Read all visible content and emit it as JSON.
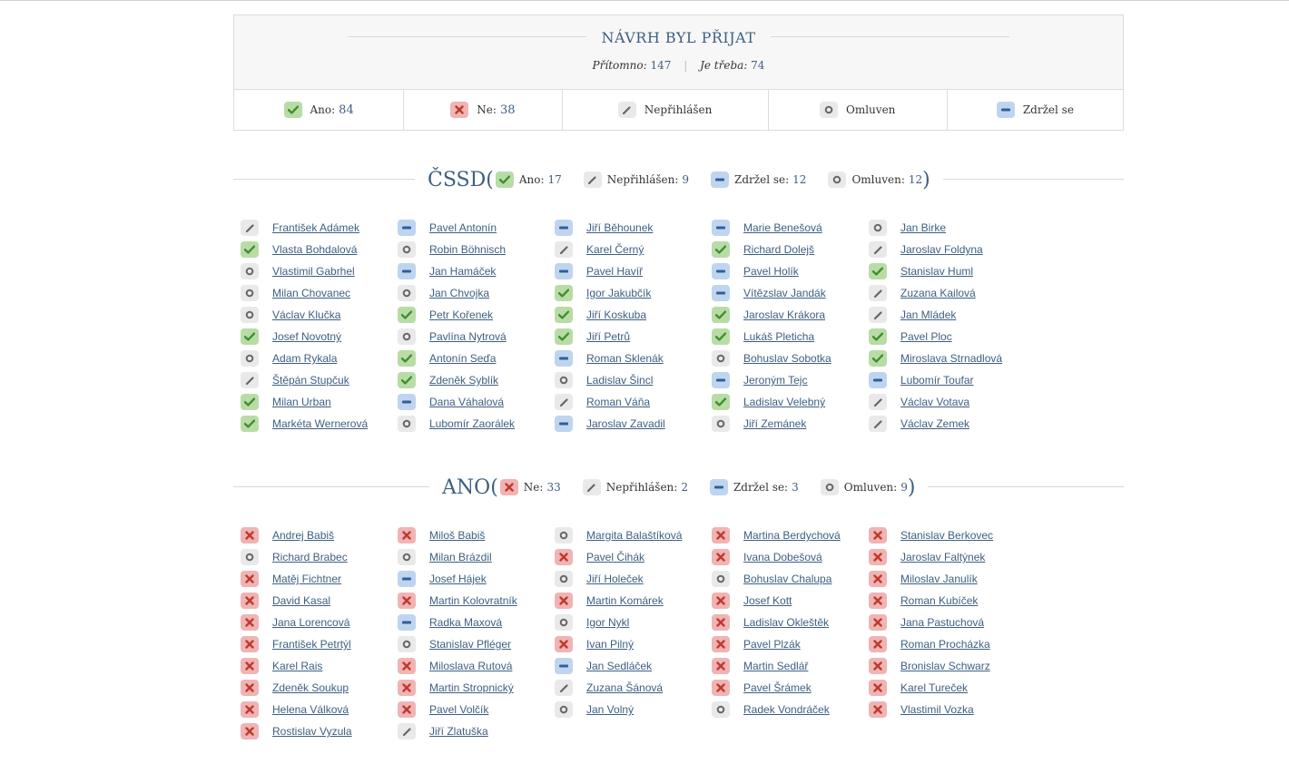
{
  "result": {
    "title": "NÁVRH BYL PŘIJAT",
    "present_label": "Přítomno:",
    "present_value": "147",
    "required_label": "Je třeba:",
    "required_value": "74",
    "legend": [
      {
        "type": "yes",
        "label": "Ano:",
        "value": "84"
      },
      {
        "type": "no",
        "label": "Ne:",
        "value": "38"
      },
      {
        "type": "abs",
        "label": "Nepřihlášen",
        "value": ""
      },
      {
        "type": "exc",
        "label": "Omluven",
        "value": ""
      },
      {
        "type": "abst",
        "label": "Zdržel se",
        "value": ""
      }
    ]
  },
  "parties": [
    {
      "name": "ČSSD",
      "summary": [
        {
          "type": "yes",
          "label": "Ano:",
          "value": "17"
        },
        {
          "type": "abs",
          "label": "Nepřihlášen:",
          "value": "9"
        },
        {
          "type": "abst",
          "label": "Zdržel se:",
          "value": "12"
        },
        {
          "type": "exc",
          "label": "Omluven:",
          "value": "12"
        }
      ],
      "members": [
        [
          {
            "n": "František Adámek",
            "v": "abs"
          },
          {
            "n": "Pavel Antonín",
            "v": "abst"
          },
          {
            "n": "Jiří Běhounek",
            "v": "abst"
          },
          {
            "n": "Marie Benešová",
            "v": "abst"
          },
          {
            "n": "Jan Birke",
            "v": "exc"
          }
        ],
        [
          {
            "n": "Vlasta Bohdalová",
            "v": "yes"
          },
          {
            "n": "Robin Böhnisch",
            "v": "exc"
          },
          {
            "n": "Karel Černý",
            "v": "abs"
          },
          {
            "n": "Richard Dolejš",
            "v": "yes"
          },
          {
            "n": "Jaroslav Foldyna",
            "v": "abs"
          }
        ],
        [
          {
            "n": "Vlastimil Gabrhel",
            "v": "exc"
          },
          {
            "n": "Jan Hamáček",
            "v": "abst"
          },
          {
            "n": "Pavel Havíř",
            "v": "abst"
          },
          {
            "n": "Pavel Holík",
            "v": "abst"
          },
          {
            "n": "Stanislav Huml",
            "v": "yes"
          }
        ],
        [
          {
            "n": "Milan Chovanec",
            "v": "exc"
          },
          {
            "n": "Jan Chvojka",
            "v": "exc"
          },
          {
            "n": "Igor Jakubčík",
            "v": "yes"
          },
          {
            "n": "Vítězslav Jandák",
            "v": "abst"
          },
          {
            "n": "Zuzana Kailová",
            "v": "abs"
          }
        ],
        [
          {
            "n": "Václav Klučka",
            "v": "exc"
          },
          {
            "n": "Petr Kořenek",
            "v": "yes"
          },
          {
            "n": "Jiří Koskuba",
            "v": "yes"
          },
          {
            "n": "Jaroslav Krákora",
            "v": "yes"
          },
          {
            "n": "Jan Mládek",
            "v": "abs"
          }
        ],
        [
          {
            "n": "Josef Novotný",
            "v": "yes"
          },
          {
            "n": "Pavlína Nytrová",
            "v": "exc"
          },
          {
            "n": "Jiří Petrů",
            "v": "yes"
          },
          {
            "n": "Lukáš Pleticha",
            "v": "yes"
          },
          {
            "n": "Pavel Ploc",
            "v": "yes"
          }
        ],
        [
          {
            "n": "Adam Rykala",
            "v": "exc"
          },
          {
            "n": "Antonín Seďa",
            "v": "yes"
          },
          {
            "n": "Roman Sklenák",
            "v": "abst"
          },
          {
            "n": "Bohuslav Sobotka",
            "v": "exc"
          },
          {
            "n": "Miroslava Strnadlová",
            "v": "yes"
          }
        ],
        [
          {
            "n": "Štěpán Stupčuk",
            "v": "abs"
          },
          {
            "n": "Zdeněk Syblík",
            "v": "yes"
          },
          {
            "n": "Ladislav Šincl",
            "v": "exc"
          },
          {
            "n": "Jeroným Tejc",
            "v": "abst"
          },
          {
            "n": "Lubomír Toufar",
            "v": "abst"
          }
        ],
        [
          {
            "n": "Milan Urban",
            "v": "yes"
          },
          {
            "n": "Dana Váhalová",
            "v": "abst"
          },
          {
            "n": "Roman Váňa",
            "v": "abs"
          },
          {
            "n": "Ladislav Velebný",
            "v": "yes"
          },
          {
            "n": "Václav Votava",
            "v": "abs"
          }
        ],
        [
          {
            "n": "Markéta Wernerová",
            "v": "yes"
          },
          {
            "n": "Lubomír Zaorálek",
            "v": "exc"
          },
          {
            "n": "Jaroslav Zavadil",
            "v": "abst"
          },
          {
            "n": "Jiří Zemánek",
            "v": "exc"
          },
          {
            "n": "Václav Zemek",
            "v": "abs"
          }
        ]
      ]
    },
    {
      "name": "ANO",
      "summary": [
        {
          "type": "no",
          "label": "Ne:",
          "value": "33"
        },
        {
          "type": "abs",
          "label": "Nepřihlášen:",
          "value": "2"
        },
        {
          "type": "abst",
          "label": "Zdržel se:",
          "value": "3"
        },
        {
          "type": "exc",
          "label": "Omluven:",
          "value": "9"
        }
      ],
      "members": [
        [
          {
            "n": "Andrej Babiš",
            "v": "no"
          },
          {
            "n": "Miloš Babiš",
            "v": "no"
          },
          {
            "n": "Margita Balaštíková",
            "v": "exc"
          },
          {
            "n": "Martina Berdychová",
            "v": "no"
          },
          {
            "n": "Stanislav Berkovec",
            "v": "no"
          }
        ],
        [
          {
            "n": "Richard Brabec",
            "v": "exc"
          },
          {
            "n": "Milan Brázdil",
            "v": "exc"
          },
          {
            "n": "Pavel Čihák",
            "v": "no"
          },
          {
            "n": "Ivana Dobešová",
            "v": "no"
          },
          {
            "n": "Jaroslav Faltýnek",
            "v": "no"
          }
        ],
        [
          {
            "n": "Matěj Fichtner",
            "v": "no"
          },
          {
            "n": "Josef Hájek",
            "v": "abst"
          },
          {
            "n": "Jiří Holeček",
            "v": "exc"
          },
          {
            "n": "Bohuslav Chalupa",
            "v": "exc"
          },
          {
            "n": "Miloslav Janulík",
            "v": "no"
          }
        ],
        [
          {
            "n": "David Kasal",
            "v": "no"
          },
          {
            "n": "Martin Kolovratník",
            "v": "no"
          },
          {
            "n": "Martin Komárek",
            "v": "no"
          },
          {
            "n": "Josef Kott",
            "v": "no"
          },
          {
            "n": "Roman Kubíček",
            "v": "no"
          }
        ],
        [
          {
            "n": "Jana Lorencová",
            "v": "no"
          },
          {
            "n": "Radka Maxová",
            "v": "abst"
          },
          {
            "n": "Igor Nykl",
            "v": "exc"
          },
          {
            "n": "Ladislav Okleštěk",
            "v": "no"
          },
          {
            "n": "Jana Pastuchová",
            "v": "no"
          }
        ],
        [
          {
            "n": "František Petrtýl",
            "v": "no"
          },
          {
            "n": "Stanislav Pfléger",
            "v": "exc"
          },
          {
            "n": "Ivan Pilný",
            "v": "no"
          },
          {
            "n": "Pavel Plzák",
            "v": "no"
          },
          {
            "n": "Roman Procházka",
            "v": "no"
          }
        ],
        [
          {
            "n": "Karel Rais",
            "v": "no"
          },
          {
            "n": "Miloslava Rutová",
            "v": "no"
          },
          {
            "n": "Jan Sedláček",
            "v": "abst"
          },
          {
            "n": "Martin Sedlář",
            "v": "no"
          },
          {
            "n": "Bronislav Schwarz",
            "v": "no"
          }
        ],
        [
          {
            "n": "Zdeněk Soukup",
            "v": "no"
          },
          {
            "n": "Martin Stropnický",
            "v": "no"
          },
          {
            "n": "Zuzana Šánová",
            "v": "abs"
          },
          {
            "n": "Pavel Šrámek",
            "v": "no"
          },
          {
            "n": "Karel Tureček",
            "v": "no"
          }
        ],
        [
          {
            "n": "Helena Válková",
            "v": "no"
          },
          {
            "n": "Pavel Volčík",
            "v": "no"
          },
          {
            "n": "Jan Volný",
            "v": "exc"
          },
          {
            "n": "Radek Vondráček",
            "v": "exc"
          },
          {
            "n": "Vlastimil Vozka",
            "v": "no"
          }
        ],
        [
          {
            "n": "Rostislav Vyzula",
            "v": "no"
          },
          {
            "n": "Jiří Zlatuška",
            "v": "abs"
          }
        ]
      ]
    }
  ]
}
